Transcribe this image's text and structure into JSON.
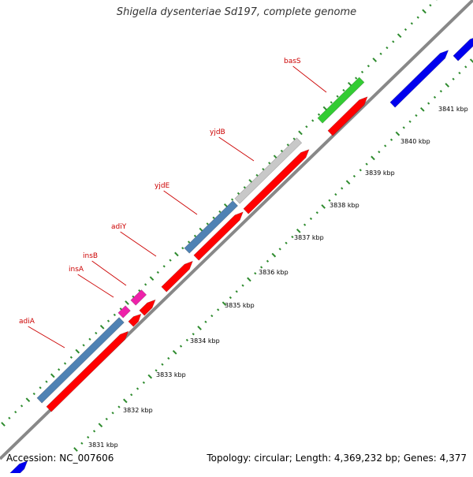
{
  "title": "Shigella dysenteriae Sd197, complete genome",
  "accession": "Accession: NC_007606",
  "summary": "Topology: circular; Length: 4,369,232 bp; Genes: 4,377",
  "colors": {
    "backbone": "#888888",
    "ticks": "#2e8b2e",
    "label": "#cc0000",
    "red": "#ff0000",
    "steelblue": "#4f82b4",
    "blue": "#0000ee",
    "green": "#33cc33",
    "gray": "#c8c8c8",
    "magenta": "#ee22aa"
  },
  "kbp_labels": [
    "3831 kbp",
    "3832 kbp",
    "3833 kbp",
    "3834 kbp",
    "3835 kbp",
    "3836 kbp",
    "3837 kbp",
    "3838 kbp",
    "3839 kbp",
    "3840 kbp",
    "3841 kbp"
  ],
  "gene_labels": [
    "adiA",
    "insA",
    "insB",
    "adiY",
    "yjdE",
    "yjdB",
    "basS"
  ]
}
